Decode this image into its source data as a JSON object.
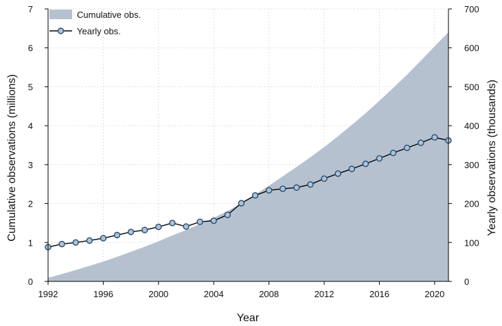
{
  "chart_data": {
    "type": "line",
    "grid": true,
    "legend_placement": "top-left",
    "xlabel": "Year",
    "ylabel_left": "Cumulative observations (millions)",
    "ylabel_right": "Yearly observations  (thousands)",
    "xlim": [
      1992,
      2021
    ],
    "ylim_left": [
      0,
      7
    ],
    "ylim_right": [
      0,
      700
    ],
    "x_ticks": [
      "1992",
      "1996",
      "2000",
      "2004",
      "2008",
      "2012",
      "2016",
      "2020"
    ],
    "y_left_ticks": [
      "0",
      "1",
      "2",
      "3",
      "4",
      "5",
      "6",
      "7"
    ],
    "y_right_ticks": [
      "0",
      "100",
      "200",
      "300",
      "400",
      "500",
      "600",
      "700"
    ],
    "colors": {
      "area": "#b5c1cf",
      "line": "#000000",
      "marker": "#1f4e79"
    },
    "series": [
      {
        "name": "Cumulative obs.",
        "axis": "left",
        "kind": "area",
        "x": [
          1992,
          1993,
          1994,
          1995,
          1996,
          1997,
          1998,
          1999,
          2000,
          2001,
          2002,
          2003,
          2004,
          2005,
          2006,
          2007,
          2008,
          2009,
          2010,
          2011,
          2012,
          2013,
          2014,
          2015,
          2016,
          2017,
          2018,
          2019,
          2020,
          2021
        ],
        "values": [
          0.09,
          0.19,
          0.29,
          0.4,
          0.51,
          0.63,
          0.76,
          0.89,
          1.03,
          1.18,
          1.32,
          1.48,
          1.63,
          1.81,
          2.01,
          2.23,
          2.46,
          2.7,
          2.94,
          3.19,
          3.45,
          3.73,
          4.02,
          4.32,
          4.64,
          4.97,
          5.31,
          5.67,
          6.04,
          6.4
        ]
      },
      {
        "name": "Yearly obs.",
        "axis": "right",
        "kind": "line",
        "x": [
          1992,
          1993,
          1994,
          1995,
          1996,
          1997,
          1998,
          1999,
          2000,
          2001,
          2002,
          2003,
          2004,
          2005,
          2006,
          2007,
          2008,
          2009,
          2010,
          2011,
          2012,
          2013,
          2014,
          2015,
          2016,
          2017,
          2018,
          2019,
          2020,
          2021
        ],
        "values": [
          88,
          96,
          100,
          105,
          111,
          119,
          127,
          132,
          140,
          150,
          141,
          153,
          156,
          171,
          201,
          221,
          234,
          238,
          241,
          249,
          264,
          277,
          289,
          302,
          316,
          330,
          343,
          356,
          370,
          362
        ]
      }
    ]
  }
}
